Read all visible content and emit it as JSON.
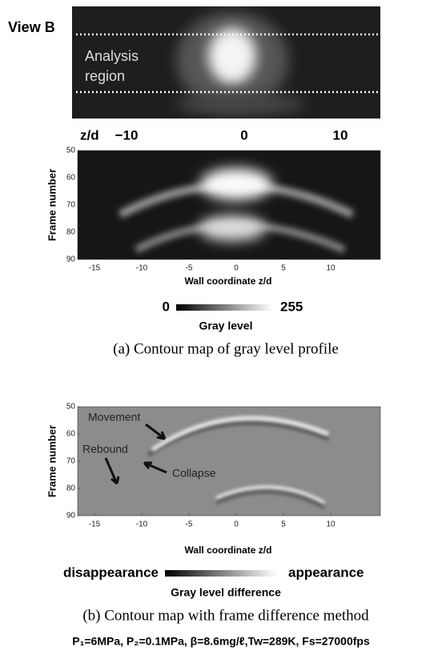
{
  "view_label": "View B",
  "photo": {
    "region_label": [
      "Analysis",
      "region"
    ],
    "axis_label": "z/d",
    "ticks": [
      "−10",
      "0",
      "10"
    ]
  },
  "panel_a": {
    "y_label": "Frame number",
    "yticks": [
      "50",
      "60",
      "70",
      "80",
      "90"
    ],
    "xticks": [
      "-15",
      "-10",
      "-5",
      "0",
      "5",
      "10"
    ],
    "x_label": "Wall coordinate z/d",
    "colorbar": {
      "min": "0",
      "max": "255",
      "label": "Gray level"
    },
    "caption": "(a) Contour map of gray level profile"
  },
  "panel_b": {
    "y_label": "Frame number",
    "yticks": [
      "50",
      "60",
      "70",
      "80",
      "90"
    ],
    "xticks": [
      "-15",
      "-10",
      "-5",
      "0",
      "5",
      "10"
    ],
    "x_label": "Wall coordinate z/d",
    "annotations": [
      "Movement",
      "Rebound",
      "Collapse"
    ],
    "colorbar": {
      "min": "disappearance",
      "max": "appearance",
      "label": "Gray level difference"
    },
    "caption": "(b) Contour map with frame difference method"
  },
  "conditions": "P₁=6MPa, P₂=0.1MPa, β=8.6mg/ℓ,Tw=289K, Fs=27000fps"
}
